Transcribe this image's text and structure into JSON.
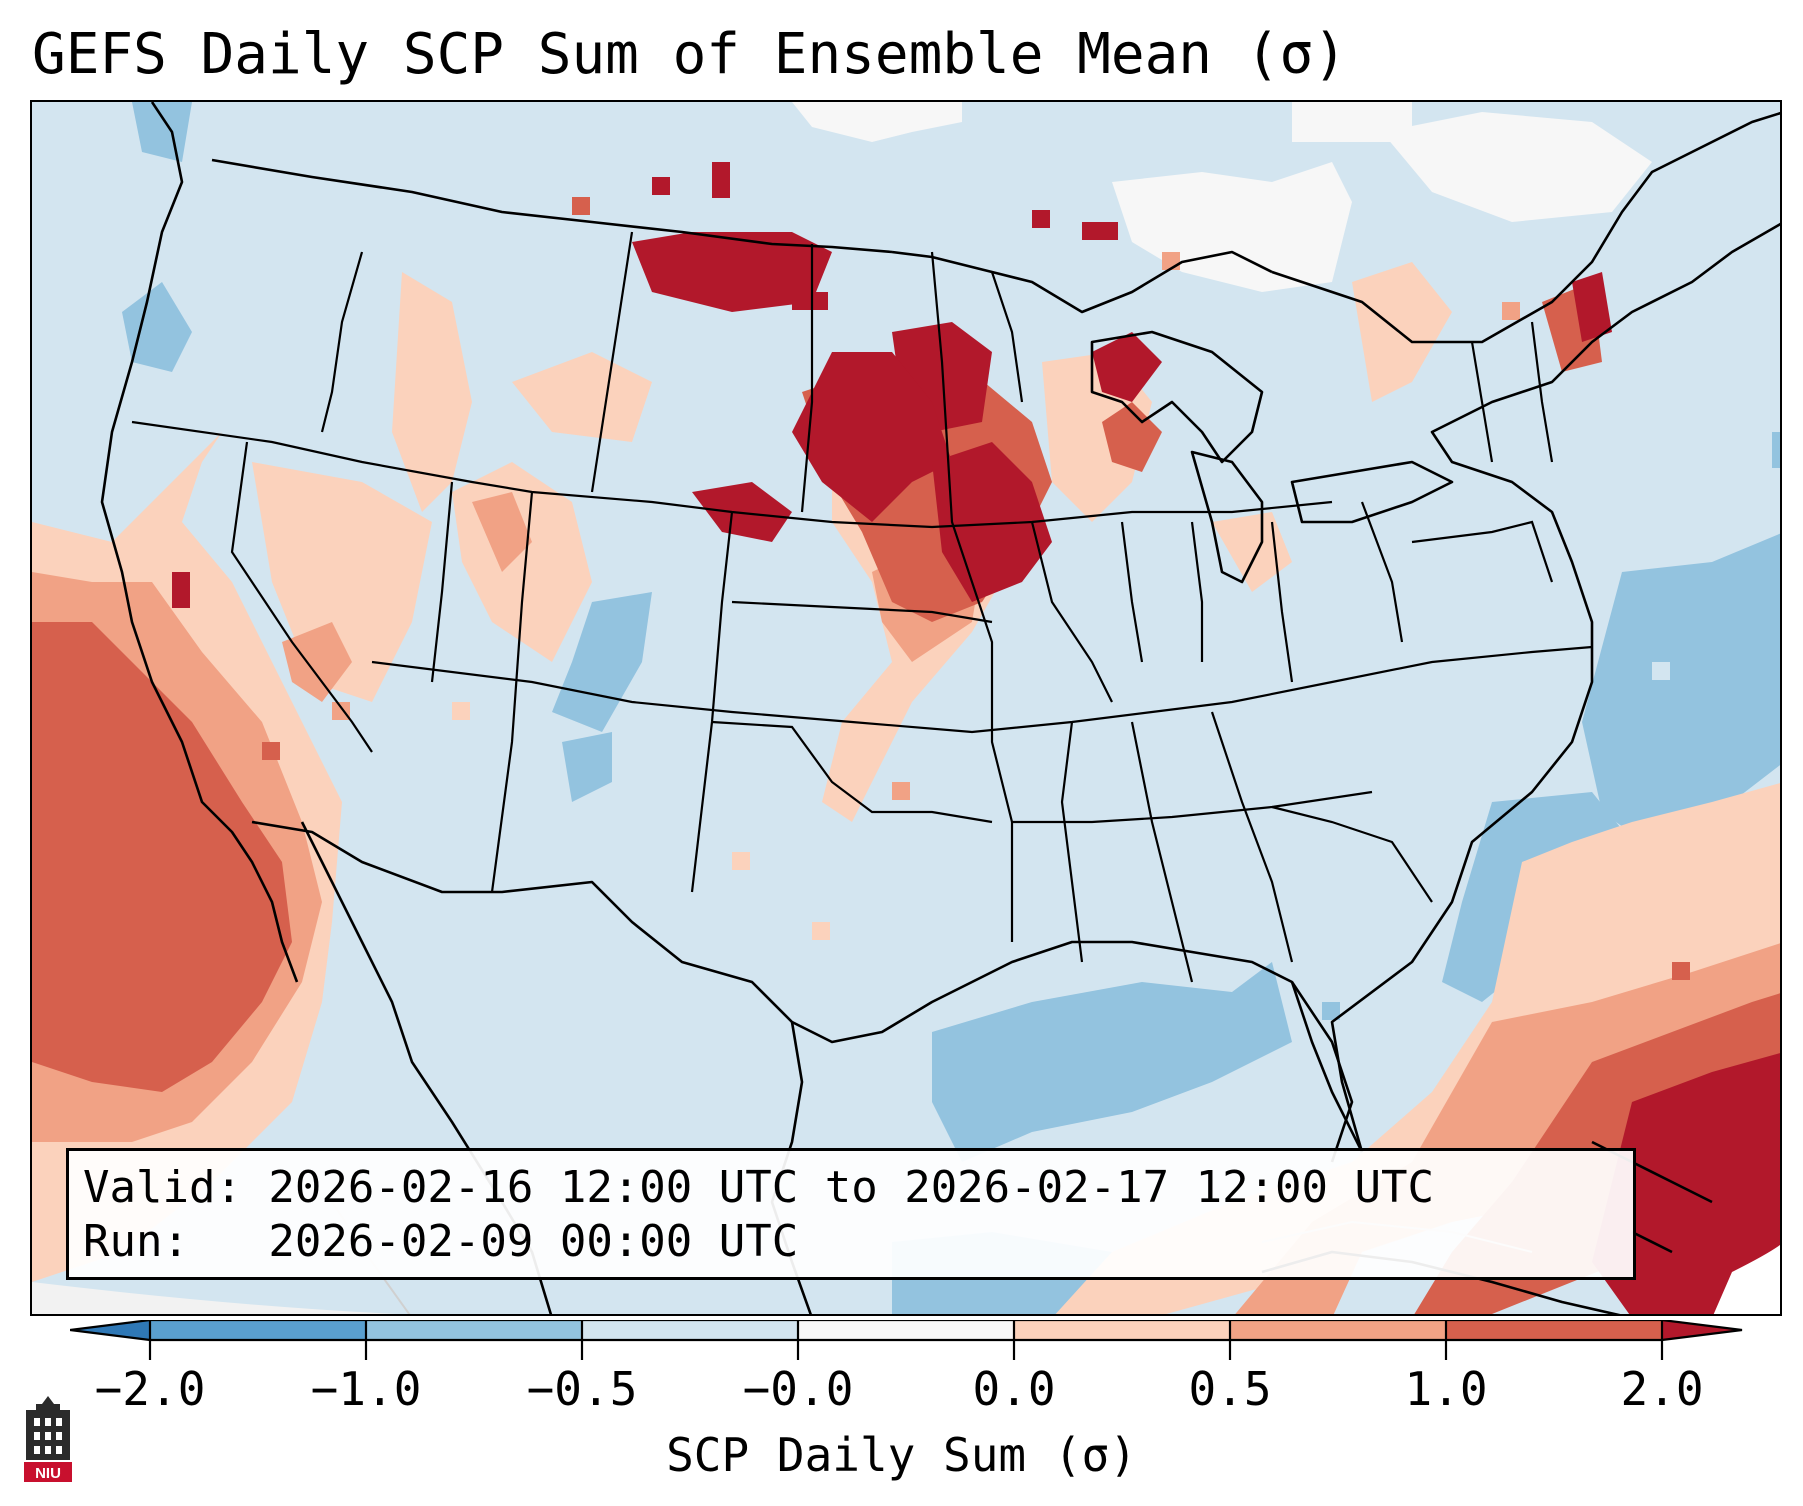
{
  "title": "GEFS Daily SCP Sum of Ensemble Mean (σ)",
  "info": {
    "valid_line": "Valid: 2026-02-16 12:00 UTC to 2026-02-17 12:00 UTC",
    "run_line": "Run:   2026-02-09 00:00 UTC"
  },
  "colorbar": {
    "label": "SCP Daily Sum (σ)",
    "ticks": [
      "−2.0",
      "−1.0",
      "−0.5",
      "−0.0",
      "0.0",
      "0.5",
      "1.0",
      "2.0"
    ],
    "bins": [
      {
        "from": "-inf",
        "to": -2.0,
        "color": "#2f78b6"
      },
      {
        "from": -2.0,
        "to": -1.0,
        "color": "#5a9fcf"
      },
      {
        "from": -1.0,
        "to": -0.5,
        "color": "#93c3df"
      },
      {
        "from": -0.5,
        "to": -0.0,
        "color": "#d3e5f0"
      },
      {
        "from": -0.0,
        "to": 0.0,
        "color": "#f7f7f7"
      },
      {
        "from": 0.0,
        "to": 0.5,
        "color": "#fbd2bc"
      },
      {
        "from": 0.5,
        "to": 1.0,
        "color": "#f1a285"
      },
      {
        "from": 1.0,
        "to": 2.0,
        "color": "#d6604d"
      },
      {
        "from": 2.0,
        "to": "inf",
        "color": "#b2182b"
      }
    ]
  },
  "logo": {
    "text": "NIU",
    "icon": "niu-tower-logo-icon"
  }
}
